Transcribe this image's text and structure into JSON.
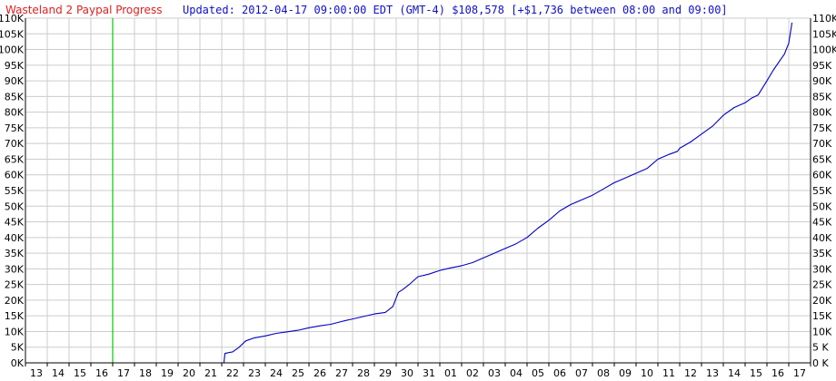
{
  "title": {
    "name": "Wasteland 2 Paypal Progress",
    "update": "Updated: 2012-04-17 09:00:00 EDT (GMT-4) $108,578 [+$1,736 between 08:00 and 09:00]"
  },
  "colors": {
    "title_name": "#e02020",
    "title_update": "#1010c8",
    "series": "#0000c0",
    "marker": "#00cc00",
    "grid": "#cccccc",
    "axis": "#000000"
  },
  "chart_data": {
    "type": "line",
    "xlim": [
      0,
      35.5
    ],
    "ylim": [
      0,
      110000
    ],
    "grid": true,
    "x_tick_labels": [
      "13",
      "14",
      "15",
      "16",
      "17",
      "18",
      "19",
      "20",
      "21",
      "22",
      "23",
      "24",
      "25",
      "26",
      "27",
      "28",
      "29",
      "30",
      "31",
      "01",
      "02",
      "03",
      "04",
      "05",
      "06",
      "07",
      "08",
      "09",
      "10",
      "11",
      "12",
      "13",
      "14",
      "15",
      "16",
      "17"
    ],
    "y_ticks": [
      0,
      5000,
      10000,
      15000,
      20000,
      25000,
      30000,
      35000,
      40000,
      45000,
      50000,
      55000,
      60000,
      65000,
      70000,
      75000,
      80000,
      85000,
      90000,
      95000,
      100000,
      105000,
      110000
    ],
    "y_tick_labels_left": [
      "0K",
      "5K",
      "10K",
      "15K",
      "20K",
      "25K",
      "30K",
      "35K",
      "40K",
      "45K",
      "50K",
      "55K",
      "60K",
      "65K",
      "70K",
      "75K",
      "80K",
      "85K",
      "90K",
      "95K",
      "100K",
      "105K",
      "110K"
    ],
    "y_tick_labels_right": [
      "0 K",
      "5 K",
      "10K",
      "15K",
      "20K",
      "25K",
      "30K",
      "35K",
      "40K",
      "45K",
      "50K",
      "55K",
      "60K",
      "65K",
      "70K",
      "75K",
      "80K",
      "85K",
      "90K",
      "95K",
      "100K",
      "105K",
      "110K"
    ],
    "marker_x": 4,
    "series": [
      {
        "x": [
          9.1,
          9.15,
          9.5,
          9.8,
          10.1,
          10.5,
          11.0,
          11.5,
          12.0,
          12.5,
          13.0,
          13.5,
          14.0,
          14.5,
          15.0,
          15.5,
          16.0,
          16.5,
          16.85,
          17.1,
          17.3,
          17.6,
          18.0,
          18.5,
          19.0,
          19.5,
          20.0,
          20.5,
          21.0,
          21.5,
          22.0,
          22.5,
          23.0,
          23.5,
          24.0,
          24.5,
          25.0,
          25.5,
          26.0,
          26.5,
          27.0,
          27.5,
          28.0,
          28.5,
          29.0,
          29.5,
          29.9,
          30.0,
          30.5,
          31.0,
          31.5,
          32.0,
          32.5,
          33.0,
          33.3,
          33.6,
          34.0,
          34.3,
          34.6,
          34.8,
          35.0,
          35.15
        ],
        "y": [
          0,
          3000,
          3500,
          5000,
          7000,
          8000,
          8600,
          9400,
          9900,
          10400,
          11200,
          11800,
          12300,
          13200,
          14000,
          14800,
          15600,
          16100,
          18000,
          22500,
          23400,
          25000,
          27500,
          28300,
          29500,
          30300,
          31000,
          32000,
          33500,
          35000,
          36500,
          38000,
          40000,
          43000,
          45500,
          48500,
          50500,
          52000,
          53500,
          55500,
          57500,
          59000,
          60500,
          62000,
          65000,
          66500,
          67500,
          68500,
          70500,
          73000,
          75500,
          79000,
          81500,
          83000,
          84500,
          85500,
          90000,
          93500,
          96500,
          98500,
          102000,
          108578
        ]
      }
    ]
  }
}
